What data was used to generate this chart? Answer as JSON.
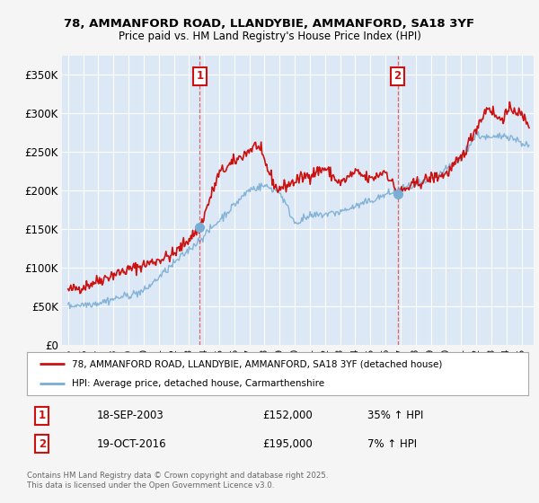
{
  "title_line1": "78, AMMANFORD ROAD, LLANDYBIE, AMMANFORD, SA18 3YF",
  "title_line2": "Price paid vs. HM Land Registry's House Price Index (HPI)",
  "background_color": "#f5f5f5",
  "plot_bg_color": "#dce8f5",
  "red_color": "#cc1111",
  "blue_color": "#7aadd4",
  "red_label": "78, AMMANFORD ROAD, LLANDYBIE, AMMANFORD, SA18 3YF (detached house)",
  "blue_label": "HPI: Average price, detached house, Carmarthenshire",
  "sale1_date": "18-SEP-2003",
  "sale1_price": "£152,000",
  "sale1_hpi": "35% ↑ HPI",
  "sale2_date": "19-OCT-2016",
  "sale2_price": "£195,000",
  "sale2_hpi": "7% ↑ HPI",
  "ylim_min": 0,
  "ylim_max": 375000,
  "yticks": [
    0,
    50000,
    100000,
    150000,
    200000,
    250000,
    300000,
    350000
  ],
  "ytick_labels": [
    "£0",
    "£50K",
    "£100K",
    "£150K",
    "£200K",
    "£250K",
    "£300K",
    "£350K"
  ],
  "copyright_text": "Contains HM Land Registry data © Crown copyright and database right 2025.\nThis data is licensed under the Open Government Licence v3.0.",
  "sale1_x": 2003.72,
  "sale1_y": 152000,
  "sale2_x": 2016.8,
  "sale2_y": 195000,
  "xmin": 1994.6,
  "xmax": 2025.8
}
